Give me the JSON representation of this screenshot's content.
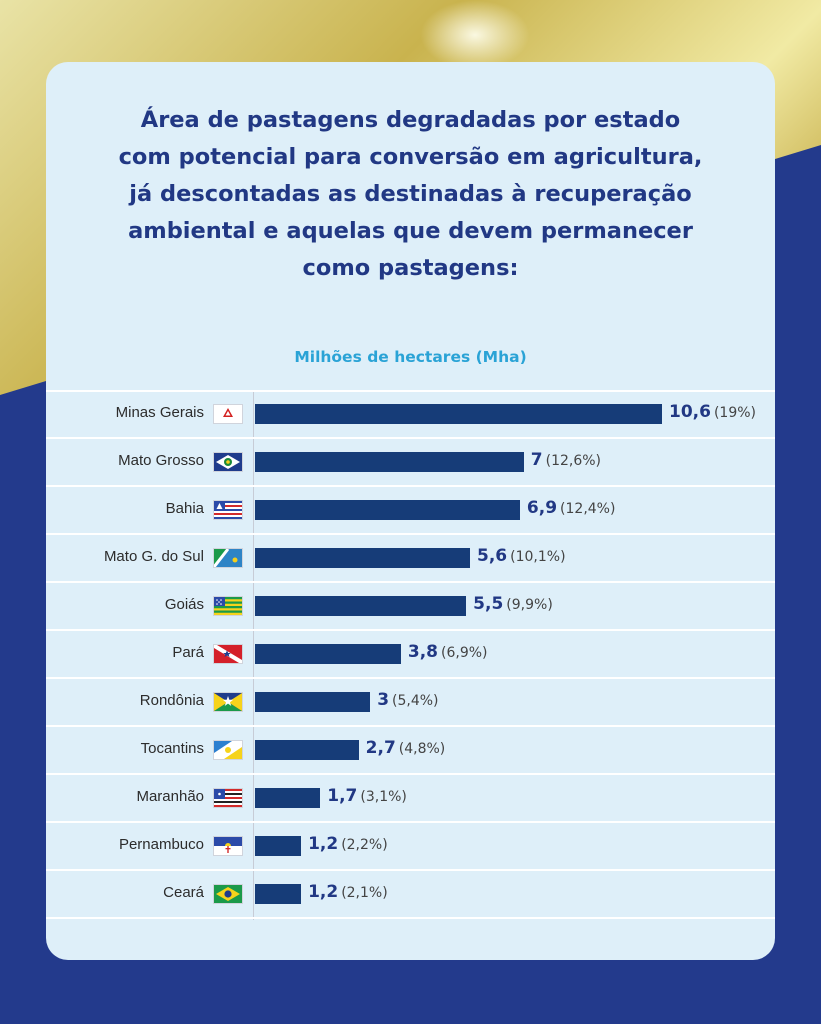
{
  "title": "Área de pastagens degradadas por estado\ncom potencial para conversão em agricultura,\njá descontadas as destinadas à recuperação\nambiental e aquelas que devem permanecer\ncomo pastagens:",
  "unit_label": "Milhões de hectares (Mha)",
  "chart_data": {
    "type": "bar",
    "orientation": "horizontal",
    "title": "Área de pastagens degradadas por estado com potencial para conversão em agricultura, já descontadas as destinadas à recuperação ambiental e aquelas que devem permanecer como pastagens:",
    "xlabel": "Milhões de hectares (Mha)",
    "ylabel": "",
    "xlim": [
      0,
      10.6
    ],
    "grid": false,
    "categories": [
      "Minas Gerais",
      "Mato Grosso",
      "Bahia",
      "Mato G. do Sul",
      "Goiás",
      "Pará",
      "Rondônia",
      "Tocantins",
      "Maranhão",
      "Pernambuco",
      "Ceará"
    ],
    "values": [
      10.6,
      7,
      6.9,
      5.6,
      5.5,
      3.8,
      3,
      2.7,
      1.7,
      1.2,
      1.2
    ],
    "value_labels": [
      "10,6",
      "7",
      "6,9",
      "5,6",
      "5,5",
      "3,8",
      "3",
      "2,7",
      "1,7",
      "1,2",
      "1,2"
    ],
    "percent_labels": [
      "(19%)",
      "(12,6%)",
      "(12,4%)",
      "(10,1%)",
      "(9,9%)",
      "(6,9%)",
      "(5,4%)",
      "(4,8%)",
      "(3,1%)",
      "(2,2%)",
      "(2,1%)"
    ],
    "flag_icons": [
      "flag-minas-gerais-icon",
      "flag-mato-grosso-icon",
      "flag-bahia-icon",
      "flag-mato-grosso-do-sul-icon",
      "flag-goias-icon",
      "flag-para-icon",
      "flag-rondonia-icon",
      "flag-tocantins-icon",
      "flag-maranhao-icon",
      "flag-pernambuco-icon",
      "flag-ceara-icon"
    ],
    "bar_color": "#163c78"
  },
  "colors": {
    "title": "#213884",
    "unit_label": "#2aa3d6",
    "card_background": "#deeff9",
    "page_background": "#233a8c"
  }
}
